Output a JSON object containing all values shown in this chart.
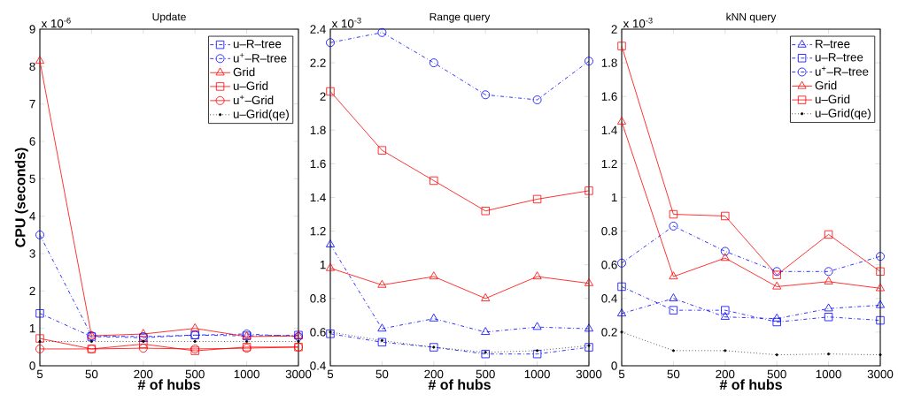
{
  "chart_data": [
    {
      "type": "line",
      "title": "Update",
      "xlabel": "# of hubs",
      "ylabel": "CPU (seconds)",
      "categories": [
        "5",
        "50",
        "200",
        "500",
        "1000",
        "3000"
      ],
      "ylim": [
        0,
        9
      ],
      "yticks": [
        0,
        1,
        2,
        3,
        4,
        5,
        6,
        7,
        8,
        9
      ],
      "legend": "top right",
      "annotations": [
        "x 10$^{-6}$"
      ],
      "series": [
        {
          "name": "u–R–tree",
          "color": "#0000ff",
          "marker": "square",
          "line_style": "dashdot",
          "values": [
            1.4,
            0.78,
            0.75,
            0.82,
            0.8,
            0.82
          ]
        },
        {
          "name": "u$^{+}$–R–tree",
          "color": "#0000ff",
          "marker": "circle",
          "line_style": "dashdot",
          "values": [
            3.5,
            0.8,
            0.78,
            0.82,
            0.85,
            0.78
          ]
        },
        {
          "name": "Grid",
          "color": "#ff0000",
          "marker": "triangle",
          "line_style": "solid",
          "values": [
            8.15,
            0.8,
            0.85,
            1.0,
            0.78,
            0.8
          ]
        },
        {
          "name": "u–Grid",
          "color": "#ff0000",
          "marker": "square",
          "line_style": "solid",
          "values": [
            0.73,
            0.45,
            0.58,
            0.4,
            0.5,
            0.5
          ]
        },
        {
          "name": "u$^{+}$–Grid",
          "color": "#ff0000",
          "marker": "circle",
          "line_style": "solid",
          "values": [
            0.45,
            0.45,
            0.47,
            0.45,
            0.47,
            0.5
          ]
        },
        {
          "name": "u–Grid(qe)",
          "color": "#000000",
          "marker": "point",
          "line_style": "dotted",
          "values": [
            0.65,
            0.65,
            0.65,
            0.65,
            0.65,
            0.65
          ]
        }
      ]
    },
    {
      "type": "line",
      "title": "Range query",
      "xlabel": "# of hubs",
      "categories": [
        "5",
        "50",
        "200",
        "500",
        "1000",
        "3000"
      ],
      "ylim": [
        0.4,
        2.4
      ],
      "yticks": [
        0.4,
        0.6,
        0.8,
        1,
        1.2,
        1.4,
        1.6,
        1.8,
        2,
        2.2,
        2.4
      ],
      "annotations": [
        "x 10$^{-3}$"
      ],
      "series": [
        {
          "color": "#0000ff",
          "marker": "triangle",
          "line_style": "dashdot",
          "values": [
            1.12,
            0.62,
            0.68,
            0.6,
            0.63,
            0.62
          ]
        },
        {
          "color": "#0000ff",
          "marker": "square",
          "line_style": "dashdot",
          "values": [
            0.59,
            0.54,
            0.51,
            0.47,
            0.47,
            0.51
          ]
        },
        {
          "color": "#0000ff",
          "marker": "circle",
          "line_style": "dashdot",
          "values": [
            2.32,
            2.38,
            2.2,
            2.01,
            1.98,
            2.21
          ]
        },
        {
          "color": "#ff0000",
          "marker": "triangle",
          "line_style": "solid",
          "values": [
            0.98,
            0.88,
            0.93,
            0.8,
            0.93,
            0.89
          ]
        },
        {
          "color": "#ff0000",
          "marker": "square",
          "line_style": "solid",
          "values": [
            2.03,
            1.68,
            1.5,
            1.32,
            1.39,
            1.44
          ]
        },
        {
          "color": "#000000",
          "marker": "point",
          "line_style": "dotted",
          "values": [
            0.6,
            0.55,
            0.51,
            0.48,
            0.49,
            0.52
          ]
        }
      ]
    },
    {
      "type": "line",
      "title": "kNN query",
      "xlabel": "# of hubs",
      "categories": [
        "5",
        "50",
        "200",
        "500",
        "1000",
        "3000"
      ],
      "ylim": [
        0,
        2
      ],
      "yticks": [
        0,
        0.2,
        0.4,
        0.6,
        0.8,
        1,
        1.2,
        1.4,
        1.6,
        1.8,
        2
      ],
      "legend": "top right",
      "annotations": [
        "x 10$^{-3}$"
      ],
      "series": [
        {
          "name": "R–tree",
          "color": "#0000ff",
          "marker": "triangle",
          "line_style": "dashdot",
          "values": [
            0.31,
            0.4,
            0.29,
            0.28,
            0.34,
            0.36
          ]
        },
        {
          "name": "u–R–tree",
          "color": "#0000ff",
          "marker": "square",
          "line_style": "dashdot",
          "values": [
            0.47,
            0.33,
            0.33,
            0.26,
            0.29,
            0.27
          ]
        },
        {
          "name": "u$^{+}$–R–tree",
          "color": "#0000ff",
          "marker": "circle",
          "line_style": "dashdot",
          "values": [
            0.61,
            0.83,
            0.68,
            0.56,
            0.56,
            0.65
          ]
        },
        {
          "name": "Grid",
          "color": "#ff0000",
          "marker": "triangle",
          "line_style": "solid",
          "values": [
            1.45,
            0.53,
            0.64,
            0.47,
            0.5,
            0.46
          ]
        },
        {
          "name": "u–Grid",
          "color": "#ff0000",
          "marker": "square",
          "line_style": "solid",
          "values": [
            1.9,
            0.9,
            0.89,
            0.54,
            0.78,
            0.56
          ]
        },
        {
          "name": "u–Grid(qe)",
          "color": "#000000",
          "marker": "point",
          "line_style": "dotted",
          "values": [
            0.2,
            0.09,
            0.09,
            0.065,
            0.07,
            0.065
          ]
        }
      ]
    }
  ]
}
